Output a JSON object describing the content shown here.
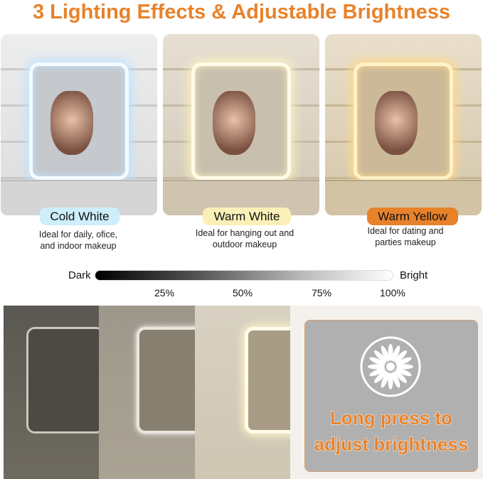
{
  "title": "3 Lighting Effects & Adjustable Brightness",
  "modes": [
    {
      "label": "Cold White",
      "description_line1": "Ideal for daily, ofice,",
      "description_line2": "and indoor makeup",
      "pill_color": "#cdeefa",
      "light_color": "#e8f6ff"
    },
    {
      "label": "Warm White",
      "description_line1": "Ideal for hanging out and",
      "description_line2": "outdoor makeup",
      "pill_color": "#fbf0b8",
      "light_color": "#fff6d8"
    },
    {
      "label": "Warm Yellow",
      "description_line1": "Ideal for dating and",
      "description_line2": "parties makeup",
      "pill_color": "#e8822a",
      "light_color": "#ffd98a"
    }
  ],
  "brightness": {
    "dark_label": "Dark",
    "bright_label": "Bright",
    "levels": [
      "25%",
      "50%",
      "75%",
      "100%"
    ]
  },
  "control": {
    "icon": "brightness-sun-icon",
    "line1": "Long press to",
    "line2": "adjust brightness"
  },
  "colors": {
    "accent": "#e8822a",
    "panel_gray": "#b0b0b0"
  }
}
